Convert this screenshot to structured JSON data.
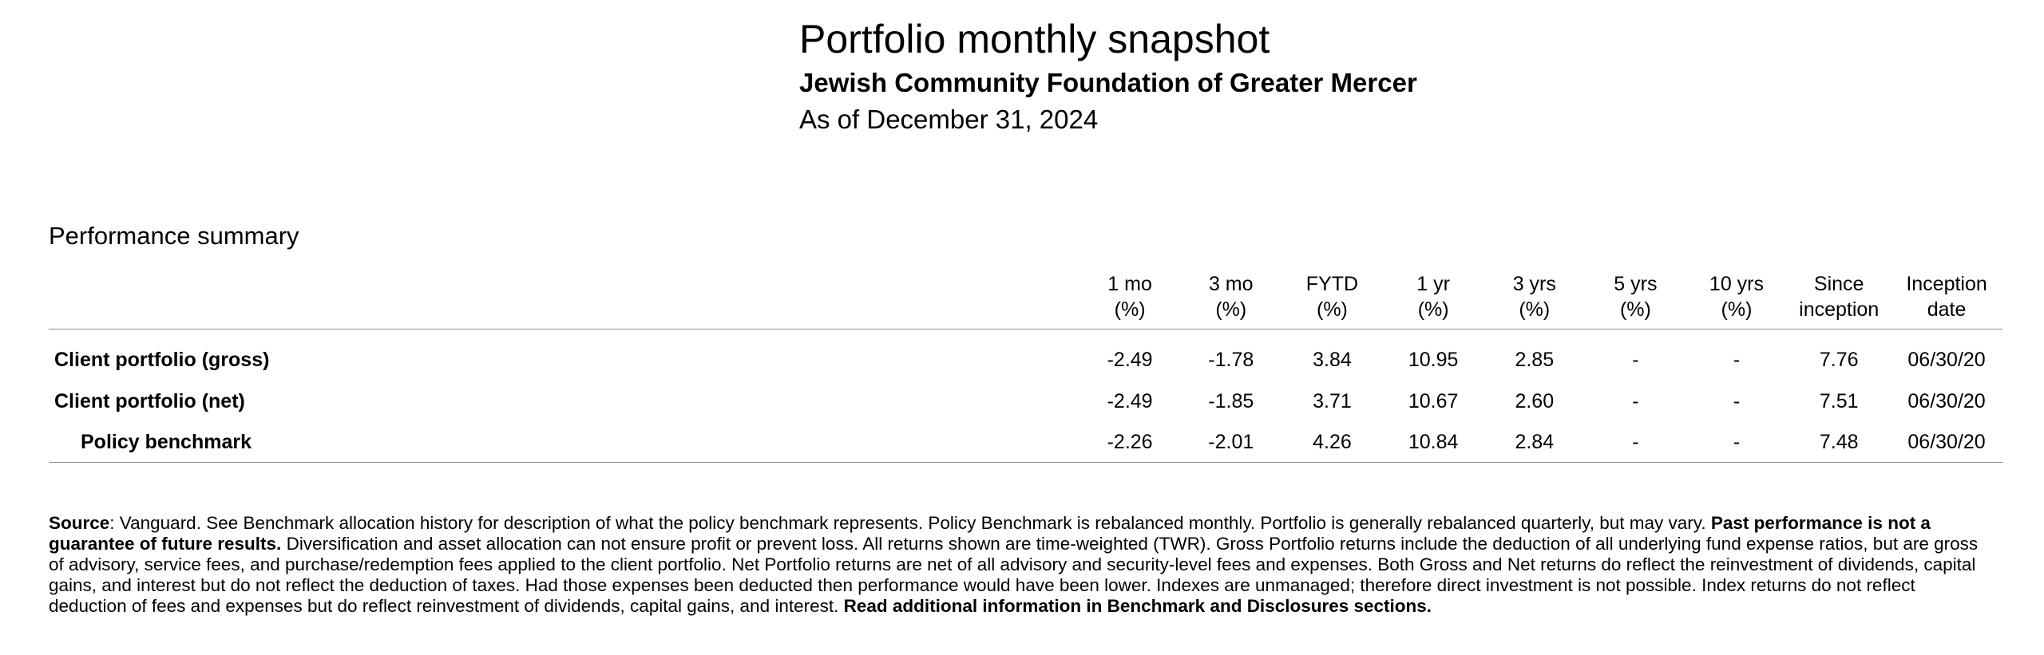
{
  "header": {
    "title": "Portfolio monthly snapshot",
    "organization": "Jewish Community Foundation of Greater Mercer",
    "as_of": "As of December 31, 2024"
  },
  "performance": {
    "section_title": "Performance summary",
    "columns": [
      {
        "line1": "1 mo",
        "line2": "(%)"
      },
      {
        "line1": "3 mo",
        "line2": "(%)"
      },
      {
        "line1": "FYTD",
        "line2": "(%)"
      },
      {
        "line1": "1 yr",
        "line2": "(%)"
      },
      {
        "line1": "3 yrs",
        "line2": "(%)"
      },
      {
        "line1": "5 yrs",
        "line2": "(%)"
      },
      {
        "line1": "10 yrs",
        "line2": "(%)"
      },
      {
        "line1": "Since",
        "line2": "inception"
      },
      {
        "line1": "Inception",
        "line2": "date"
      }
    ],
    "rows": [
      {
        "label": "Client portfolio (gross)",
        "values": [
          "-2.49",
          "-1.78",
          "3.84",
          "10.95",
          "2.85",
          "-",
          "-",
          "7.76",
          "06/30/20"
        ]
      },
      {
        "label": "Client portfolio (net)",
        "values": [
          "-2.49",
          "-1.85",
          "3.71",
          "10.67",
          "2.60",
          "-",
          "-",
          "7.51",
          "06/30/20"
        ]
      },
      {
        "label": "Policy benchmark",
        "values": [
          "-2.26",
          "-2.01",
          "4.26",
          "10.84",
          "2.84",
          "-",
          "-",
          "7.48",
          "06/30/20"
        ]
      }
    ]
  },
  "footnote": {
    "source_label": "Source",
    "text1": ": Vanguard. See Benchmark allocation history for description of what the policy benchmark represents. Policy Benchmark is rebalanced monthly. Portfolio is generally rebalanced quarterly, but may vary. ",
    "bold1": "Past performance is not a guarantee of future results.",
    "text2": " Diversification and asset allocation can not ensure profit or prevent loss. All returns shown are time-weighted (TWR). Gross Portfolio returns include the deduction of all underlying fund expense ratios, but are gross of advisory, service fees, and purchase/redemption fees applied to the client portfolio. Net Portfolio returns are net of all advisory and security-level fees and expenses. Both Gross and Net returns do reflect the reinvestment of dividends, capital gains, and interest but do not reflect the deduction of taxes. Had those expenses been deducted then performance would have been lower. Indexes are unmanaged; therefore direct investment is not possible. Index returns do not reflect deduction of fees and expenses but do reflect reinvestment of dividends, capital gains, and interest. ",
    "bold2": "Read additional information in Benchmark and Disclosures sections."
  }
}
